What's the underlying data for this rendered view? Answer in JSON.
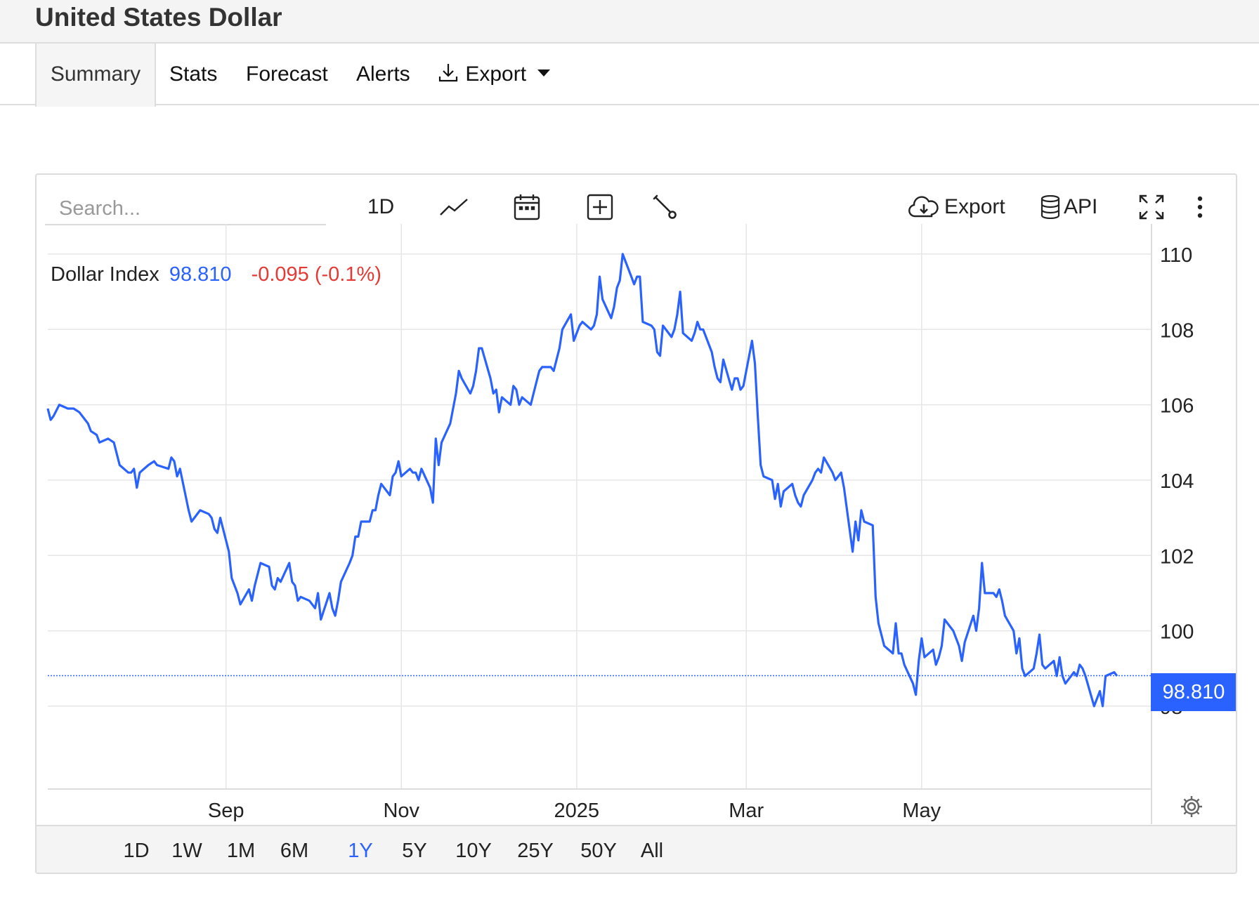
{
  "header": {
    "title": "United States Dollar"
  },
  "tabs": [
    {
      "label": "Summary",
      "active": true
    },
    {
      "label": "Stats",
      "active": false
    },
    {
      "label": "Forecast",
      "active": false
    },
    {
      "label": "Alerts",
      "active": false
    },
    {
      "label": "Export",
      "icon": "download-icon",
      "dropdown": true,
      "active": false
    }
  ],
  "toolbar": {
    "search_placeholder": "Search...",
    "interval_label": "1D",
    "chart_type_icon": "line-chart-icon",
    "calendar_icon": "calendar-icon",
    "compare_icon": "plus-box-icon",
    "tools_icon": "wrench-icon",
    "export_label": "Export",
    "export_icon": "cloud-download-icon",
    "api_label": "API",
    "api_icon": "database-icon",
    "fullscreen_icon": "fullscreen-icon",
    "more_icon": "more-vertical-icon"
  },
  "legend": {
    "name": "Dollar Index",
    "value": "98.810",
    "change": "-0.095 (-0.1%)"
  },
  "colors": {
    "line": "#2962ff",
    "negative": "#e53935",
    "grid": "#e6e6e6"
  },
  "last_price_label": "98.810",
  "ranges": [
    "1D",
    "1W",
    "1M",
    "6M",
    "1Y",
    "5Y",
    "10Y",
    "25Y",
    "50Y",
    "All"
  ],
  "active_range": "1Y",
  "settings_icon": "gear-icon",
  "chart_data": {
    "type": "line",
    "title": "",
    "xlabel": "",
    "ylabel": "",
    "ylim": [
      95.8,
      110.8
    ],
    "y_ticks": [
      98,
      100,
      102,
      104,
      106,
      108,
      110
    ],
    "x_tick_labels": [
      "Sep",
      "Nov",
      "2025",
      "Mar",
      "May"
    ],
    "x_tick_dates": [
      "2024-09-01",
      "2024-11-01",
      "2025-01-01",
      "2025-03-01",
      "2025-05-01"
    ],
    "last_value": 98.81,
    "grid": true,
    "series": [
      {
        "name": "Dollar Index",
        "points": [
          [
            "2024-07-01",
            105.9
          ],
          [
            "2024-07-02",
            105.6
          ],
          [
            "2024-07-03",
            105.7
          ],
          [
            "2024-07-05",
            106.0
          ],
          [
            "2024-07-08",
            105.9
          ],
          [
            "2024-07-10",
            105.9
          ],
          [
            "2024-07-12",
            105.8
          ],
          [
            "2024-07-15",
            105.5
          ],
          [
            "2024-07-16",
            105.3
          ],
          [
            "2024-07-18",
            105.2
          ],
          [
            "2024-07-19",
            105.0
          ],
          [
            "2024-07-22",
            105.1
          ],
          [
            "2024-07-24",
            105.0
          ],
          [
            "2024-07-26",
            104.4
          ],
          [
            "2024-07-29",
            104.2
          ],
          [
            "2024-07-30",
            104.2
          ],
          [
            "2024-07-31",
            104.3
          ],
          [
            "2024-08-01",
            103.8
          ],
          [
            "2024-08-02",
            104.2
          ],
          [
            "2024-08-05",
            104.4
          ],
          [
            "2024-08-07",
            104.5
          ],
          [
            "2024-08-08",
            104.4
          ],
          [
            "2024-08-12",
            104.3
          ],
          [
            "2024-08-13",
            104.6
          ],
          [
            "2024-08-14",
            104.5
          ],
          [
            "2024-08-15",
            104.1
          ],
          [
            "2024-08-16",
            104.3
          ],
          [
            "2024-08-19",
            103.2
          ],
          [
            "2024-08-20",
            102.9
          ],
          [
            "2024-08-21",
            103.0
          ],
          [
            "2024-08-23",
            103.2
          ],
          [
            "2024-08-26",
            103.1
          ],
          [
            "2024-08-27",
            103.0
          ],
          [
            "2024-08-28",
            102.7
          ],
          [
            "2024-08-29",
            102.6
          ],
          [
            "2024-08-30",
            103.0
          ],
          [
            "2024-09-02",
            102.1
          ],
          [
            "2024-09-03",
            101.4
          ],
          [
            "2024-09-04",
            101.2
          ],
          [
            "2024-09-05",
            101.0
          ],
          [
            "2024-09-06",
            100.7
          ],
          [
            "2024-09-09",
            101.1
          ],
          [
            "2024-09-10",
            100.8
          ],
          [
            "2024-09-11",
            101.2
          ],
          [
            "2024-09-12",
            101.5
          ],
          [
            "2024-09-13",
            101.8
          ],
          [
            "2024-09-16",
            101.7
          ],
          [
            "2024-09-17",
            101.2
          ],
          [
            "2024-09-18",
            101.1
          ],
          [
            "2024-09-19",
            101.4
          ],
          [
            "2024-09-20",
            101.3
          ],
          [
            "2024-09-23",
            101.8
          ],
          [
            "2024-09-24",
            101.3
          ],
          [
            "2024-09-25",
            101.2
          ],
          [
            "2024-09-26",
            100.8
          ],
          [
            "2024-09-27",
            100.9
          ],
          [
            "2024-09-30",
            100.8
          ],
          [
            "2024-10-01",
            100.7
          ],
          [
            "2024-10-02",
            100.6
          ],
          [
            "2024-10-03",
            101.0
          ],
          [
            "2024-10-04",
            100.3
          ],
          [
            "2024-10-07",
            101.0
          ],
          [
            "2024-10-08",
            100.6
          ],
          [
            "2024-10-09",
            100.4
          ],
          [
            "2024-10-10",
            100.8
          ],
          [
            "2024-10-11",
            101.3
          ],
          [
            "2024-10-14",
            101.8
          ],
          [
            "2024-10-15",
            102.0
          ],
          [
            "2024-10-16",
            102.5
          ],
          [
            "2024-10-17",
            102.5
          ],
          [
            "2024-10-18",
            102.9
          ],
          [
            "2024-10-21",
            102.9
          ],
          [
            "2024-10-22",
            103.2
          ],
          [
            "2024-10-23",
            103.2
          ],
          [
            "2024-10-24",
            103.6
          ],
          [
            "2024-10-25",
            103.9
          ],
          [
            "2024-10-28",
            103.6
          ],
          [
            "2024-10-29",
            104.1
          ],
          [
            "2024-10-30",
            104.2
          ],
          [
            "2024-10-31",
            104.5
          ],
          [
            "2024-11-01",
            104.1
          ],
          [
            "2024-11-04",
            104.3
          ],
          [
            "2024-11-05",
            104.2
          ],
          [
            "2024-11-06",
            104.2
          ],
          [
            "2024-11-07",
            104.0
          ],
          [
            "2024-11-08",
            104.3
          ],
          [
            "2024-11-11",
            103.8
          ],
          [
            "2024-11-12",
            103.4
          ],
          [
            "2024-11-13",
            105.1
          ],
          [
            "2024-11-14",
            104.4
          ],
          [
            "2024-11-15",
            105.0
          ],
          [
            "2024-11-18",
            105.5
          ],
          [
            "2024-11-19",
            105.9
          ],
          [
            "2024-11-20",
            106.3
          ],
          [
            "2024-11-21",
            106.9
          ],
          [
            "2024-11-22",
            106.7
          ],
          [
            "2024-11-25",
            106.3
          ],
          [
            "2024-11-26",
            106.5
          ],
          [
            "2024-11-27",
            106.9
          ],
          [
            "2024-11-28",
            107.5
          ],
          [
            "2024-11-29",
            107.5
          ],
          [
            "2024-12-02",
            106.7
          ],
          [
            "2024-12-03",
            106.3
          ],
          [
            "2024-12-04",
            106.4
          ],
          [
            "2024-12-05",
            105.8
          ],
          [
            "2024-12-06",
            106.2
          ],
          [
            "2024-12-09",
            106.0
          ],
          [
            "2024-12-10",
            106.5
          ],
          [
            "2024-12-11",
            106.4
          ],
          [
            "2024-12-12",
            106.0
          ],
          [
            "2024-12-13",
            106.2
          ],
          [
            "2024-12-16",
            106.0
          ],
          [
            "2024-12-17",
            106.3
          ],
          [
            "2024-12-18",
            106.6
          ],
          [
            "2024-12-19",
            106.9
          ],
          [
            "2024-12-20",
            107.0
          ],
          [
            "2024-12-23",
            107.0
          ],
          [
            "2024-12-24",
            106.9
          ],
          [
            "2024-12-26",
            107.5
          ],
          [
            "2024-12-27",
            108.0
          ],
          [
            "2024-12-30",
            108.4
          ],
          [
            "2024-12-31",
            107.7
          ],
          [
            "2025-01-02",
            108.1
          ],
          [
            "2025-01-03",
            108.2
          ],
          [
            "2025-01-06",
            108.0
          ],
          [
            "2025-01-07",
            108.1
          ],
          [
            "2025-01-08",
            108.4
          ],
          [
            "2025-01-09",
            109.4
          ],
          [
            "2025-01-10",
            108.8
          ],
          [
            "2025-01-13",
            108.3
          ],
          [
            "2025-01-14",
            108.6
          ],
          [
            "2025-01-15",
            109.1
          ],
          [
            "2025-01-16",
            109.3
          ],
          [
            "2025-01-17",
            110.0
          ],
          [
            "2025-01-20",
            109.4
          ],
          [
            "2025-01-21",
            109.2
          ],
          [
            "2025-01-22",
            109.4
          ],
          [
            "2025-01-23",
            109.4
          ],
          [
            "2025-01-24",
            108.2
          ],
          [
            "2025-01-27",
            108.1
          ],
          [
            "2025-01-28",
            108.0
          ],
          [
            "2025-01-29",
            107.4
          ],
          [
            "2025-01-30",
            107.3
          ],
          [
            "2025-01-31",
            108.1
          ],
          [
            "2025-02-03",
            107.8
          ],
          [
            "2025-02-04",
            108.0
          ],
          [
            "2025-02-05",
            108.4
          ],
          [
            "2025-02-06",
            109.0
          ],
          [
            "2025-02-07",
            107.9
          ],
          [
            "2025-02-10",
            107.7
          ],
          [
            "2025-02-11",
            107.9
          ],
          [
            "2025-02-12",
            108.2
          ],
          [
            "2025-02-13",
            108.0
          ],
          [
            "2025-02-14",
            108.0
          ],
          [
            "2025-02-17",
            107.4
          ],
          [
            "2025-02-18",
            107.0
          ],
          [
            "2025-02-19",
            106.7
          ],
          [
            "2025-02-20",
            106.6
          ],
          [
            "2025-02-21",
            107.2
          ],
          [
            "2025-02-24",
            106.4
          ],
          [
            "2025-02-25",
            106.7
          ],
          [
            "2025-02-26",
            106.7
          ],
          [
            "2025-02-27",
            106.4
          ],
          [
            "2025-02-28",
            106.5
          ],
          [
            "2025-03-03",
            107.7
          ],
          [
            "2025-03-04",
            107.1
          ],
          [
            "2025-03-05",
            105.7
          ],
          [
            "2025-03-06",
            104.4
          ],
          [
            "2025-03-07",
            104.1
          ],
          [
            "2025-03-10",
            104.0
          ],
          [
            "2025-03-11",
            103.5
          ],
          [
            "2025-03-12",
            103.9
          ],
          [
            "2025-03-13",
            103.3
          ],
          [
            "2025-03-14",
            103.7
          ],
          [
            "2025-03-17",
            103.9
          ],
          [
            "2025-03-18",
            103.6
          ],
          [
            "2025-03-19",
            103.4
          ],
          [
            "2025-03-20",
            103.3
          ],
          [
            "2025-03-21",
            103.6
          ],
          [
            "2025-03-24",
            104.0
          ],
          [
            "2025-03-25",
            104.2
          ],
          [
            "2025-03-26",
            104.3
          ],
          [
            "2025-03-27",
            104.2
          ],
          [
            "2025-03-28",
            104.6
          ],
          [
            "2025-03-31",
            104.2
          ],
          [
            "2025-04-01",
            104.0
          ],
          [
            "2025-04-02",
            104.1
          ],
          [
            "2025-04-03",
            104.2
          ],
          [
            "2025-04-04",
            103.8
          ],
          [
            "2025-04-07",
            102.1
          ],
          [
            "2025-04-08",
            102.9
          ],
          [
            "2025-04-09",
            102.4
          ],
          [
            "2025-04-10",
            103.2
          ],
          [
            "2025-04-11",
            102.9
          ],
          [
            "2025-04-14",
            102.8
          ],
          [
            "2025-04-15",
            100.9
          ],
          [
            "2025-04-16",
            100.2
          ],
          [
            "2025-04-17",
            99.9
          ],
          [
            "2025-04-18",
            99.6
          ],
          [
            "2025-04-21",
            99.4
          ],
          [
            "2025-04-22",
            100.2
          ],
          [
            "2025-04-23",
            99.4
          ],
          [
            "2025-04-24",
            99.4
          ],
          [
            "2025-04-25",
            99.1
          ],
          [
            "2025-04-28",
            98.6
          ],
          [
            "2025-04-29",
            98.3
          ],
          [
            "2025-04-30",
            99.2
          ],
          [
            "2025-05-01",
            99.8
          ],
          [
            "2025-05-02",
            99.3
          ],
          [
            "2025-05-05",
            99.5
          ],
          [
            "2025-05-06",
            99.1
          ],
          [
            "2025-05-07",
            99.3
          ],
          [
            "2025-05-08",
            99.6
          ],
          [
            "2025-05-09",
            100.3
          ],
          [
            "2025-05-12",
            100.0
          ],
          [
            "2025-05-13",
            99.8
          ],
          [
            "2025-05-14",
            99.6
          ],
          [
            "2025-05-15",
            99.2
          ],
          [
            "2025-05-16",
            99.7
          ],
          [
            "2025-05-19",
            100.4
          ],
          [
            "2025-05-20",
            100.0
          ],
          [
            "2025-05-21",
            100.6
          ],
          [
            "2025-05-22",
            101.8
          ],
          [
            "2025-05-23",
            101.0
          ],
          [
            "2025-05-26",
            101.0
          ],
          [
            "2025-05-27",
            100.9
          ],
          [
            "2025-05-28",
            101.1
          ],
          [
            "2025-05-29",
            100.8
          ],
          [
            "2025-05-30",
            100.4
          ],
          [
            "2025-06-02",
            100.0
          ],
          [
            "2025-06-03",
            99.4
          ],
          [
            "2025-06-04",
            99.8
          ],
          [
            "2025-06-05",
            99.0
          ],
          [
            "2025-06-06",
            98.8
          ],
          [
            "2025-06-09",
            99.0
          ],
          [
            "2025-06-10",
            99.4
          ],
          [
            "2025-06-11",
            99.9
          ],
          [
            "2025-06-12",
            99.1
          ],
          [
            "2025-06-13",
            99.0
          ],
          [
            "2025-06-16",
            99.2
          ],
          [
            "2025-06-17",
            98.8
          ],
          [
            "2025-06-18",
            99.3
          ],
          [
            "2025-06-19",
            98.8
          ],
          [
            "2025-06-20",
            98.6
          ],
          [
            "2025-06-23",
            98.9
          ],
          [
            "2025-06-24",
            98.8
          ],
          [
            "2025-06-25",
            99.1
          ],
          [
            "2025-06-26",
            99.0
          ],
          [
            "2025-06-27",
            98.8
          ],
          [
            "2025-06-30",
            98.0
          ],
          [
            "2025-07-01",
            98.2
          ],
          [
            "2025-07-02",
            98.4
          ],
          [
            "2025-07-03",
            98.0
          ],
          [
            "2025-07-04",
            98.8
          ],
          [
            "2025-07-07",
            98.9
          ],
          [
            "2025-07-08",
            98.8
          ]
        ]
      }
    ]
  }
}
